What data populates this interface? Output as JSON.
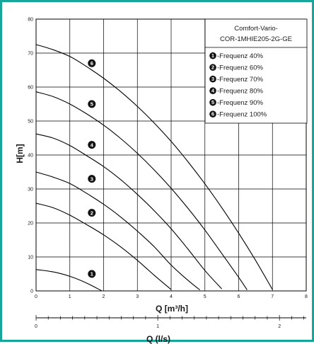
{
  "colors": {
    "frame": "#17a79a",
    "grid": "#000000",
    "curve": "#000000"
  },
  "chart_data": {
    "type": "line",
    "xlabel_main": "Q [m³/h]",
    "xlabel_secondary": "Q (l/s)",
    "ylabel": "H[m]",
    "xlim": [
      0,
      8
    ],
    "ylim": [
      0,
      80
    ],
    "xticks": [
      "0",
      "1",
      "2",
      "3",
      "4",
      "5",
      "6",
      "7",
      "8"
    ],
    "yticks": [
      "0",
      "10",
      "20",
      "30",
      "40",
      "50",
      "60",
      "70",
      "80"
    ],
    "secondary_ticks": [
      "0",
      "1",
      "2"
    ],
    "secondary_range_ls": [
      0,
      2.22
    ],
    "grid": true,
    "legend_placement": "top-right",
    "legend_title_lines": [
      "Comfort-Vario-",
      "COR-1MHIE205-2G-GE"
    ],
    "series": [
      {
        "marker": "1",
        "name": "-Frequenz 40%",
        "marker_at": [
          1.65,
          5
        ],
        "points": [
          [
            0,
            6.3
          ],
          [
            0.5,
            5.6
          ],
          [
            1.0,
            4.3
          ],
          [
            1.5,
            2.3
          ],
          [
            1.95,
            0
          ]
        ]
      },
      {
        "marker": "2",
        "name": "-Frequenz 60%",
        "marker_at": [
          1.65,
          23
        ],
        "points": [
          [
            0,
            25.8
          ],
          [
            0.5,
            24.5
          ],
          [
            1.0,
            22.3
          ],
          [
            1.5,
            19.5
          ],
          [
            2.0,
            16.5
          ],
          [
            2.5,
            13.0
          ],
          [
            3.0,
            9.0
          ],
          [
            3.5,
            4.6
          ],
          [
            4.0,
            0.4
          ]
        ]
      },
      {
        "marker": "3",
        "name": "-Frequenz 70%",
        "marker_at": [
          1.65,
          33
        ],
        "points": [
          [
            0,
            35.0
          ],
          [
            0.5,
            33.5
          ],
          [
            1.0,
            31.6
          ],
          [
            1.5,
            28.7
          ],
          [
            2.0,
            25.5
          ],
          [
            2.5,
            21.8
          ],
          [
            3.0,
            17.6
          ],
          [
            3.5,
            13.0
          ],
          [
            4.0,
            7.6
          ],
          [
            4.5,
            3.1
          ],
          [
            4.85,
            0.3
          ]
        ]
      },
      {
        "marker": "4",
        "name": "-Frequenz 80%",
        "marker_at": [
          1.65,
          43
        ],
        "points": [
          [
            0,
            46.2
          ],
          [
            0.5,
            45.0
          ],
          [
            1.0,
            42.8
          ],
          [
            1.5,
            39.8
          ],
          [
            2.0,
            36.6
          ],
          [
            2.5,
            32.8
          ],
          [
            3.0,
            28.4
          ],
          [
            3.5,
            23.6
          ],
          [
            4.0,
            18.3
          ],
          [
            4.5,
            12.3
          ],
          [
            5.0,
            6.0
          ],
          [
            5.5,
            0.6
          ]
        ]
      },
      {
        "marker": "5",
        "name": "-Frequenz 90%",
        "marker_at": [
          1.65,
          55
        ],
        "points": [
          [
            0,
            58.6
          ],
          [
            0.5,
            57.2
          ],
          [
            1.0,
            55.0
          ],
          [
            1.5,
            52.1
          ],
          [
            2.0,
            48.8
          ],
          [
            2.5,
            44.9
          ],
          [
            3.0,
            40.5
          ],
          [
            3.5,
            35.6
          ],
          [
            4.0,
            30.2
          ],
          [
            4.5,
            24.3
          ],
          [
            5.0,
            17.9
          ],
          [
            5.5,
            11.0
          ],
          [
            6.0,
            4.0
          ],
          [
            6.25,
            0.3
          ]
        ]
      },
      {
        "marker": "6",
        "name": "-Frequenz 100%",
        "marker_at": [
          1.65,
          67
        ],
        "points": [
          [
            0,
            72.5
          ],
          [
            0.5,
            71.0
          ],
          [
            1.0,
            69.0
          ],
          [
            1.5,
            66.0
          ],
          [
            2.0,
            62.6
          ],
          [
            2.5,
            58.7
          ],
          [
            3.0,
            54.3
          ],
          [
            3.5,
            49.4
          ],
          [
            4.0,
            44.0
          ],
          [
            4.5,
            38.0
          ],
          [
            5.0,
            31.5
          ],
          [
            5.5,
            24.5
          ],
          [
            6.0,
            17.0
          ],
          [
            6.5,
            9.0
          ],
          [
            7.0,
            0.4
          ]
        ]
      }
    ]
  }
}
